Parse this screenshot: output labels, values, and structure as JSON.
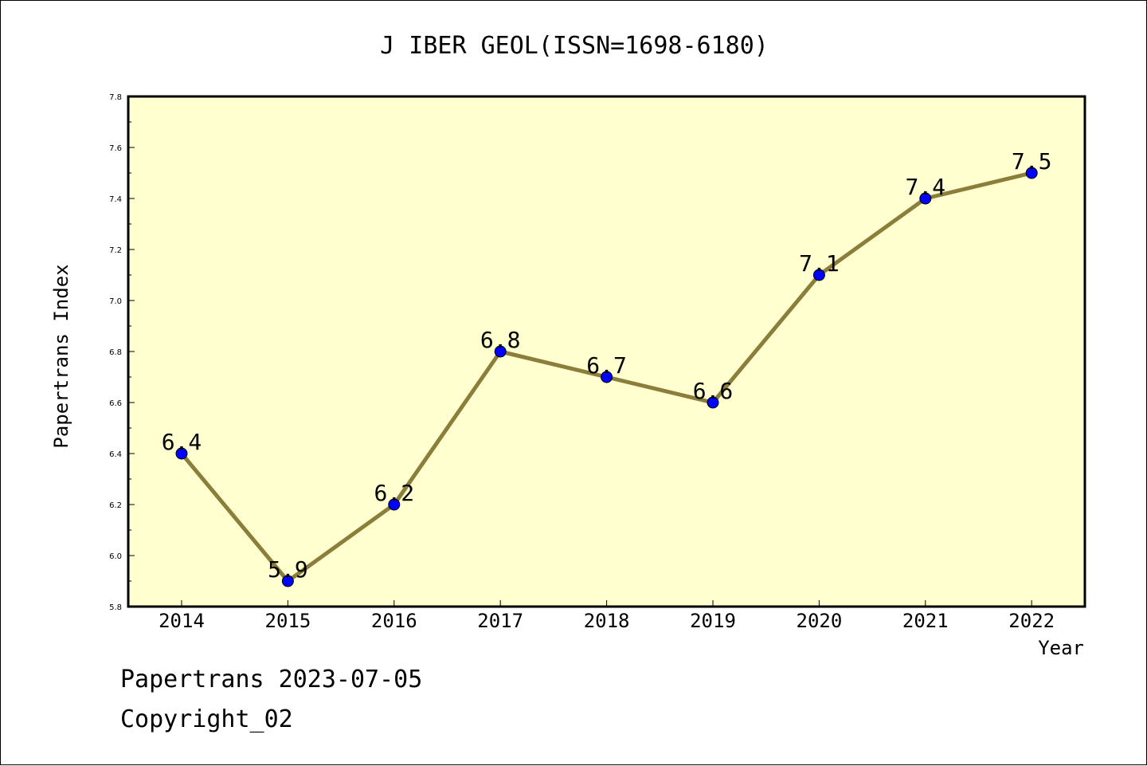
{
  "chart_data": {
    "type": "line",
    "title": "J IBER GEOL(ISSN=1698-6180)",
    "xlabel": "Year",
    "ylabel": "Papertrans Index",
    "categories": [
      "2014",
      "2015",
      "2016",
      "2017",
      "2018",
      "2019",
      "2020",
      "2021",
      "2022"
    ],
    "series": [
      {
        "values": [
          6.4,
          5.9,
          6.2,
          6.8,
          6.7,
          6.6,
          7.1,
          7.4,
          7.5
        ],
        "labels": [
          "6.4",
          "5.9",
          "6.2",
          "6.8",
          "6.7",
          "6.6",
          "7.1",
          "7.4",
          "7.5"
        ]
      }
    ],
    "ylim": [
      5.8,
      7.8
    ],
    "yticks": [
      "5.8",
      "6.0",
      "6.2",
      "6.4",
      "6.6",
      "6.8",
      "7.0",
      "7.2",
      "7.4",
      "7.6",
      "7.8"
    ],
    "grid": false,
    "colors": {
      "line": "#8B7D3A",
      "marker": "#0000FF",
      "plot_background": "#FFFFD0",
      "axis": "#000000"
    }
  },
  "footer": {
    "date": "Papertrans 2023-07-05",
    "copyright": "Copyright_02"
  }
}
